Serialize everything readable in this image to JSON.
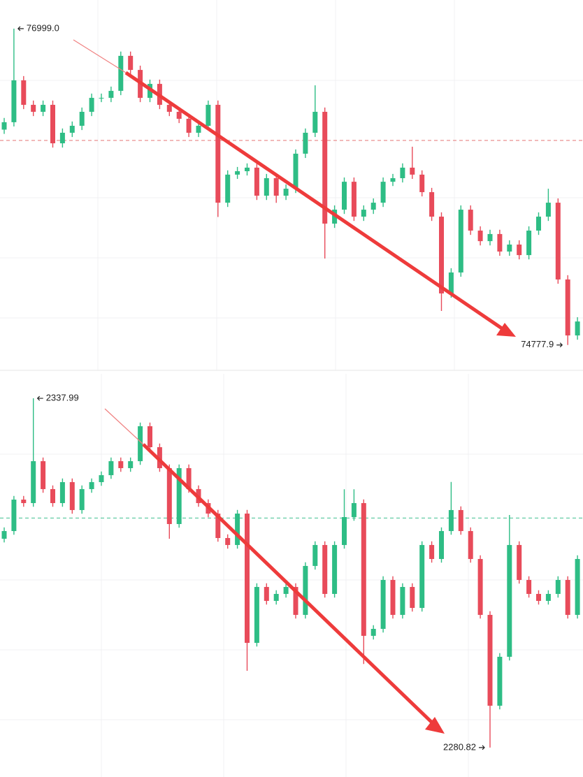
{
  "chart_data": [
    {
      "type": "candlestick",
      "up_color": "#2ebd85",
      "down_color": "#e84b5a",
      "ref_color": "#e57373",
      "ylim": [
        74600,
        77200
      ],
      "open": [
        76290,
        76342,
        76636,
        76464,
        76415,
        76464,
        76194,
        76268,
        76317,
        76415,
        76513,
        76513,
        76562,
        76808,
        76709,
        76513,
        76611,
        76464,
        76415,
        76366,
        76268,
        76317,
        76464,
        75777,
        75974,
        75998,
        76023,
        75826,
        75949,
        75826,
        75875,
        76121,
        76268,
        76415,
        75630,
        75728,
        75924,
        75679,
        75728,
        75777,
        75924,
        75949,
        76023,
        75974,
        75851,
        75679,
        75140,
        75287,
        75728,
        75581,
        75507,
        75557,
        75434,
        75483,
        75409,
        75581,
        75679,
        75777,
        75238,
        74845
      ],
      "high": [
        76372,
        76999,
        76666,
        76494,
        76494,
        76494,
        76298,
        76347,
        76445,
        76543,
        76543,
        76592,
        76838,
        76838,
        76739,
        76641,
        76641,
        76494,
        76445,
        76396,
        76347,
        76494,
        76494,
        76004,
        76028,
        76053,
        76053,
        75979,
        75979,
        75905,
        76151,
        76298,
        76601,
        76445,
        75758,
        75954,
        75954,
        75758,
        75807,
        75954,
        75979,
        76053,
        76170,
        76004,
        75881,
        75709,
        75317,
        75758,
        75758,
        75611,
        75587,
        75587,
        75513,
        75513,
        75611,
        75709,
        75875,
        75807,
        75268,
        74973
      ],
      "low": [
        76260,
        76312,
        76434,
        76385,
        76385,
        76164,
        76164,
        76238,
        76287,
        76385,
        76483,
        76483,
        76532,
        76679,
        76483,
        76483,
        76434,
        76385,
        76336,
        76238,
        76238,
        76287,
        75677,
        75747,
        75944,
        75968,
        75796,
        75796,
        75776,
        75796,
        75845,
        76091,
        76238,
        75385,
        75600,
        75698,
        75649,
        75649,
        75698,
        75747,
        75894,
        75919,
        75944,
        75821,
        75649,
        75017,
        75110,
        75257,
        75551,
        75477,
        75477,
        75404,
        75404,
        75379,
        75379,
        75551,
        75649,
        75208,
        74777.9,
        74815
      ],
      "close": [
        76342,
        76636,
        76464,
        76415,
        76464,
        76194,
        76268,
        76317,
        76415,
        76513,
        76513,
        76562,
        76808,
        76709,
        76513,
        76611,
        76464,
        76415,
        76366,
        76268,
        76317,
        76464,
        75777,
        75974,
        75998,
        76023,
        75826,
        75949,
        75826,
        75875,
        76121,
        76268,
        76415,
        75630,
        75728,
        75924,
        75679,
        75728,
        75777,
        75924,
        75949,
        76023,
        75974,
        75851,
        75679,
        75140,
        75287,
        75728,
        75581,
        75507,
        75557,
        75434,
        75483,
        75409,
        75581,
        75679,
        75777,
        75238,
        74845,
        74943
      ],
      "ref_line": 76214,
      "max_label": {
        "value": 76999,
        "label": "76999.0"
      },
      "min_label": 74777.9
    },
    {
      "type": "candlestick",
      "up_color": "#2ebd85",
      "down_color": "#e84b5a",
      "ref_color": "#3fbf8f",
      "ylim": [
        2276,
        2342
      ],
      "open": [
        2315.0,
        2316.26,
        2321.41,
        2320.84,
        2327.7,
        2323.13,
        2320.84,
        2324.27,
        2319.7,
        2323.13,
        2324.27,
        2325.41,
        2327.7,
        2326.56,
        2327.7,
        2333.42,
        2329.99,
        2326.56,
        2317.41,
        2326.56,
        2323.13,
        2320.84,
        2319.12,
        2315.12,
        2313.98,
        2319.12,
        2297.96,
        2307.11,
        2304.83,
        2305.97,
        2307.11,
        2302.54,
        2310.55,
        2313.98,
        2305.97,
        2313.98,
        2318.55,
        2320.84,
        2299.11,
        2300.25,
        2308.26,
        2302.54,
        2307.11,
        2303.68,
        2313.98,
        2311.69,
        2316.26,
        2319.7,
        2316.26,
        2311.69,
        2302.54,
        2287.67,
        2295.68,
        2313.98,
        2308.26,
        2305.97,
        2304.83,
        2305.97,
        2308.26,
        2302.54
      ],
      "high": [
        2316.86,
        2322.01,
        2322.01,
        2337.99,
        2328.3,
        2323.73,
        2324.87,
        2324.87,
        2323.73,
        2324.87,
        2326.01,
        2328.3,
        2328.3,
        2328.3,
        2334.02,
        2334.02,
        2330.59,
        2327.16,
        2327.16,
        2327.16,
        2323.73,
        2321.44,
        2319.72,
        2315.72,
        2319.72,
        2319.72,
        2307.71,
        2307.71,
        2306.57,
        2307.71,
        2307.71,
        2311.15,
        2314.58,
        2314.58,
        2314.58,
        2323.1,
        2323.1,
        2321.44,
        2300.85,
        2308.86,
        2308.86,
        2307.71,
        2307.71,
        2314.58,
        2314.58,
        2316.86,
        2324.3,
        2320.3,
        2316.86,
        2312.29,
        2303.14,
        2296.28,
        2318.9,
        2314.58,
        2308.86,
        2306.57,
        2306.57,
        2308.86,
        2308.86,
        2312.29
      ],
      "low": [
        2314.4,
        2315.66,
        2320.24,
        2320.24,
        2322.53,
        2320.24,
        2320.24,
        2319.1,
        2319.1,
        2322.53,
        2323.67,
        2324.81,
        2325.96,
        2325.96,
        2327.1,
        2329.39,
        2325.96,
        2315.0,
        2316.81,
        2322.53,
        2320.24,
        2318.52,
        2314.52,
        2313.38,
        2313.38,
        2293.39,
        2297.36,
        2304.23,
        2304.23,
        2305.37,
        2301.94,
        2301.94,
        2309.95,
        2305.37,
        2305.37,
        2313.38,
        2317.95,
        2294.5,
        2298.51,
        2299.65,
        2301.94,
        2301.94,
        2303.08,
        2303.08,
        2311.09,
        2311.09,
        2315.66,
        2315.66,
        2311.09,
        2301.94,
        2280.82,
        2287.07,
        2295.08,
        2307.66,
        2305.37,
        2304.23,
        2304.23,
        2305.37,
        2301.94,
        2301.94
      ],
      "close": [
        2316.26,
        2321.41,
        2320.84,
        2327.7,
        2323.13,
        2320.84,
        2324.27,
        2319.7,
        2323.13,
        2324.27,
        2325.41,
        2327.7,
        2326.56,
        2327.7,
        2333.42,
        2329.99,
        2326.56,
        2317.41,
        2326.56,
        2323.13,
        2320.84,
        2319.12,
        2315.12,
        2313.98,
        2319.12,
        2297.96,
        2307.11,
        2304.83,
        2305.97,
        2307.11,
        2302.54,
        2310.55,
        2313.98,
        2305.97,
        2313.98,
        2318.55,
        2320.84,
        2299.11,
        2300.25,
        2308.26,
        2302.54,
        2307.11,
        2303.68,
        2313.98,
        2311.69,
        2316.26,
        2319.7,
        2316.26,
        2311.69,
        2302.54,
        2287.67,
        2295.68,
        2313.98,
        2308.26,
        2305.97,
        2304.83,
        2305.97,
        2308.26,
        2302.54,
        2311.69
      ],
      "ref_line": 2318.4,
      "max_label": 2337.99,
      "min_label": 2280.82
    }
  ]
}
